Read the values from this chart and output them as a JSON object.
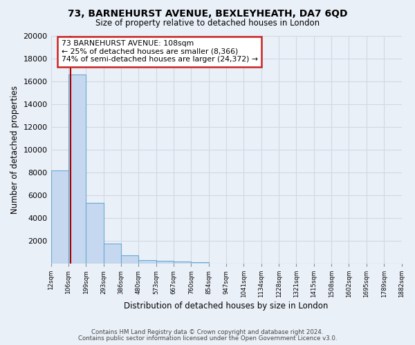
{
  "title": "73, BARNEHURST AVENUE, BEXLEYHEATH, DA7 6QD",
  "subtitle": "Size of property relative to detached houses in London",
  "xlabel": "Distribution of detached houses by size in London",
  "ylabel": "Number of detached properties",
  "bar_values": [
    8200,
    16600,
    5300,
    1750,
    700,
    320,
    220,
    180,
    130,
    0,
    0,
    0,
    0,
    0,
    0,
    0,
    0,
    0,
    0,
    0
  ],
  "bin_labels": [
    "12sqm",
    "106sqm",
    "199sqm",
    "293sqm",
    "386sqm",
    "480sqm",
    "573sqm",
    "667sqm",
    "760sqm",
    "854sqm",
    "947sqm",
    "1041sqm",
    "1134sqm",
    "1228sqm",
    "1321sqm",
    "1415sqm",
    "1508sqm",
    "1602sqm",
    "1695sqm",
    "1789sqm",
    "1882sqm"
  ],
  "bar_color": "#c5d8ef",
  "bar_edge_color": "#6aaad4",
  "vline_color": "#aa0000",
  "annotation_text_line1": "73 BARNEHURST AVENUE: 108sqm",
  "annotation_text_line2": "← 25% of detached houses are smaller (8,366)",
  "annotation_text_line3": "74% of semi-detached houses are larger (24,372) →",
  "ylim": [
    0,
    20000
  ],
  "yticks": [
    0,
    2000,
    4000,
    6000,
    8000,
    10000,
    12000,
    14000,
    16000,
    18000,
    20000
  ],
  "bg_color": "#eaf0f8",
  "plot_bg_color": "#eaf0f8",
  "grid_color": "#d0d8e4",
  "footer_line1": "Contains HM Land Registry data © Crown copyright and database right 2024.",
  "footer_line2": "Contains public sector information licensed under the Open Government Licence v3.0."
}
